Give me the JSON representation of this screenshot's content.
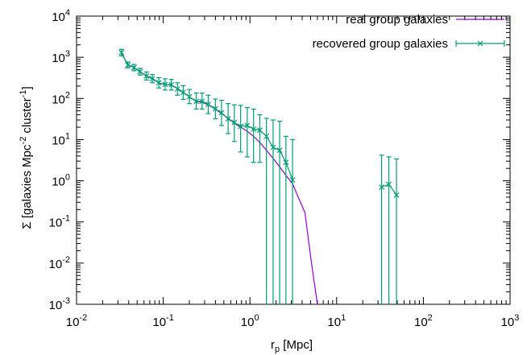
{
  "chart_data": {
    "type": "line",
    "xscale": "log",
    "yscale": "log",
    "xlim": [
      0.01,
      1000
    ],
    "ylim": [
      0.001,
      10000
    ],
    "xlabel": {
      "main": "r",
      "sub": "p",
      "rest": " [Mpc]"
    },
    "ylabel": {
      "pre": "Σ [galaxies Mpc",
      "sup1": "-2",
      "mid": " cluster",
      "sup2": "-1",
      "post": "]"
    },
    "x_ticks": [
      {
        "base": "10",
        "exp": "-2",
        "value": 0.01
      },
      {
        "base": "10",
        "exp": "-1",
        "value": 0.1
      },
      {
        "base": "10",
        "exp": "0",
        "value": 1
      },
      {
        "base": "10",
        "exp": "1",
        "value": 10
      },
      {
        "base": "10",
        "exp": "2",
        "value": 100
      },
      {
        "base": "10",
        "exp": "3",
        "value": 1000
      }
    ],
    "y_ticks": [
      {
        "base": "10",
        "exp": "-3",
        "value": 0.001
      },
      {
        "base": "10",
        "exp": "-2",
        "value": 0.01
      },
      {
        "base": "10",
        "exp": "-1",
        "value": 0.1
      },
      {
        "base": "10",
        "exp": "0",
        "value": 1
      },
      {
        "base": "10",
        "exp": "1",
        "value": 10
      },
      {
        "base": "10",
        "exp": "2",
        "value": 100
      },
      {
        "base": "10",
        "exp": "3",
        "value": 1000
      },
      {
        "base": "10",
        "exp": "4",
        "value": 10000
      }
    ],
    "legend_position": "top-right",
    "series": [
      {
        "name": "real group galaxies",
        "color": "#9400d3",
        "style": "line",
        "points": [
          [
            0.033,
            1250
          ],
          [
            0.039,
            660
          ],
          [
            0.046,
            570
          ],
          [
            0.054,
            440
          ],
          [
            0.064,
            350
          ],
          [
            0.075,
            310
          ],
          [
            0.089,
            235
          ],
          [
            0.105,
            220
          ],
          [
            0.124,
            210
          ],
          [
            0.146,
            175
          ],
          [
            0.17,
            140
          ],
          [
            0.2,
            110
          ],
          [
            0.24,
            85
          ],
          [
            0.28,
            80
          ],
          [
            0.33,
            70
          ],
          [
            0.4,
            55
          ],
          [
            0.47,
            43
          ],
          [
            0.56,
            33
          ],
          [
            0.66,
            25
          ],
          [
            0.78,
            20
          ],
          [
            0.93,
            16
          ],
          [
            1.1,
            12
          ],
          [
            1.3,
            8.5
          ],
          [
            1.55,
            5.5
          ],
          [
            1.85,
            3.5
          ],
          [
            2.2,
            2.2
          ],
          [
            2.6,
            1.35
          ],
          [
            3.1,
            0.85
          ],
          [
            3.6,
            0.4
          ],
          [
            4.3,
            0.17
          ],
          [
            5.1,
            0.011
          ],
          [
            6.0,
            0.001
          ]
        ]
      },
      {
        "name": "recovered group galaxies",
        "color": "#009e73",
        "style": "linespoints-errorbars",
        "segments": [
          [
            [
              0.033,
              1300,
              1080,
              1560
            ],
            [
              0.039,
              650,
              550,
              770
            ],
            [
              0.046,
              560,
              470,
              670
            ],
            [
              0.054,
              450,
              370,
              540
            ],
            [
              0.064,
              350,
              280,
              440
            ],
            [
              0.075,
              300,
              240,
              380
            ],
            [
              0.089,
              240,
              180,
              320
            ],
            [
              0.105,
              220,
              160,
              300
            ],
            [
              0.124,
              215,
              160,
              290
            ],
            [
              0.146,
              170,
              120,
              240
            ],
            [
              0.17,
              140,
              95,
              205
            ],
            [
              0.2,
              110,
              75,
              165
            ],
            [
              0.24,
              85,
              55,
              135
            ],
            [
              0.28,
              85,
              55,
              135
            ],
            [
              0.33,
              72,
              43,
              120
            ],
            [
              0.4,
              56,
              32,
              97
            ],
            [
              0.47,
              45,
              22,
              90
            ],
            [
              0.56,
              32,
              14,
              75
            ],
            [
              0.66,
              26,
              9,
              70
            ],
            [
              0.78,
              21,
              5,
              68
            ],
            [
              0.93,
              22,
              3.8,
              60
            ],
            [
              1.1,
              18,
              2.8,
              55
            ],
            [
              1.3,
              17,
              2.8,
              40
            ],
            [
              1.55,
              12,
              0.001,
              33
            ],
            [
              1.85,
              6.5,
              0.001,
              30
            ],
            [
              2.2,
              5.5,
              0.001,
              28
            ],
            [
              2.6,
              2.8,
              0.001,
              12
            ],
            [
              3.1,
              1.05,
              0.001,
              10
            ]
          ],
          [
            [
              33,
              0.7,
              0.001,
              4.2
            ],
            [
              40,
              0.82,
              0.001,
              3.8
            ],
            [
              49,
              0.45,
              0.001,
              3.4
            ]
          ]
        ]
      }
    ]
  }
}
